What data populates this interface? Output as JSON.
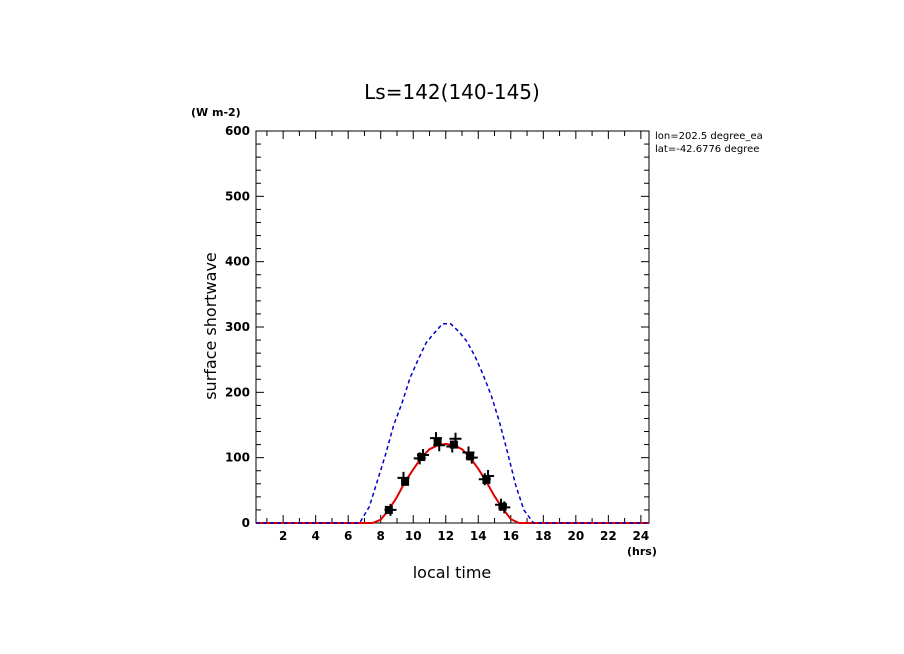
{
  "chart_data": {
    "type": "line",
    "title": "Ls=142(140-145)",
    "ylabel": "surface shortwave",
    "yunit": "(W m-2)",
    "xlabel": "local time",
    "xunit": "(hrs)",
    "xlim": [
      0.33,
      24.5
    ],
    "ylim": [
      0,
      600
    ],
    "xticks": [
      2,
      4,
      6,
      8,
      10,
      12,
      14,
      16,
      18,
      20,
      22,
      24
    ],
    "yticks": [
      0,
      100,
      200,
      300,
      400,
      500,
      600
    ],
    "annotations": [
      "lon=202.5 degree_ea",
      "lat=-42.6776 degree"
    ],
    "grid": false,
    "colors": {
      "observed": "#e00000",
      "clear_sky": "#0000cc",
      "markers": "#000000"
    },
    "series": [
      {
        "style": "solid-red",
        "x": [
          0.33,
          1,
          2,
          3,
          4,
          5,
          6,
          7,
          7.5,
          8,
          8.5,
          9,
          9.5,
          10,
          10.5,
          11,
          11.5,
          12,
          12.5,
          13,
          13.5,
          14,
          14.5,
          15,
          15.5,
          16,
          16.5,
          17,
          18,
          19,
          20,
          21,
          22,
          23,
          24,
          24.5
        ],
        "y": [
          0,
          0,
          0,
          0,
          0,
          0,
          0,
          0,
          0,
          5,
          20,
          40,
          63,
          82,
          100,
          113,
          119,
          121,
          119,
          113,
          100,
          83,
          63,
          41,
          22,
          6,
          0,
          0,
          0,
          0,
          0,
          0,
          0,
          0,
          0,
          0
        ]
      },
      {
        "style": "dashed-blue",
        "x": [
          0.33,
          2,
          4,
          6,
          6.7,
          7.3,
          7.8,
          8.3,
          8.8,
          9.3,
          9.8,
          10.3,
          10.8,
          11.3,
          11.8,
          12.3,
          12.8,
          13.3,
          13.8,
          14.3,
          14.8,
          15.3,
          15.8,
          16.3,
          16.8,
          17.4,
          18,
          20,
          22,
          24,
          24.5
        ],
        "y": [
          0,
          0,
          0,
          0,
          0,
          25,
          65,
          105,
          150,
          183,
          222,
          250,
          276,
          291,
          305,
          305,
          293,
          278,
          255,
          227,
          195,
          155,
          108,
          58,
          20,
          0,
          0,
          0,
          0,
          0,
          0
        ]
      },
      {
        "style": "marker-plus",
        "x": [
          8.6,
          9.4,
          10.4,
          10.6,
          11.4,
          11.6,
          12.4,
          12.6,
          13.4,
          13.6,
          14.4,
          14.6,
          15.4,
          15.6
        ],
        "y": [
          20,
          69,
          99,
          104,
          130,
          119,
          117,
          129,
          108,
          100,
          67,
          72,
          28,
          24
        ]
      },
      {
        "style": "marker-square",
        "x": [
          8.5,
          9.5,
          10.5,
          11.5,
          12.5,
          13.5,
          14.5,
          15.5
        ],
        "y": [
          20,
          63,
          101,
          125,
          120,
          102,
          66,
          25
        ]
      }
    ]
  }
}
